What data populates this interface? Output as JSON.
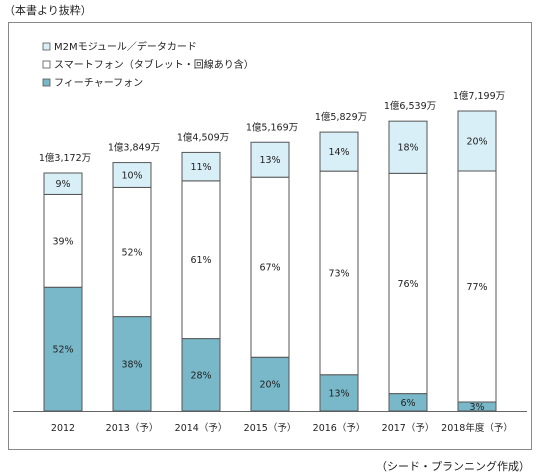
{
  "header": {
    "note": "（本書より抜粋）"
  },
  "footer": {
    "source": "（シード・プランニング作成）"
  },
  "colors": {
    "m2m": "#d9eff7",
    "smart": "#ffffff",
    "feature": "#79b8c9",
    "border": "#555555"
  },
  "chart_data": {
    "type": "bar",
    "stacked": true,
    "percent_stacked": true,
    "categories": [
      "2012",
      "2013（予）",
      "2014（予）",
      "2015（予）",
      "2016（予）",
      "2017（予）",
      "2018年度（予）"
    ],
    "totals": [
      "1億3,172万",
      "1億3,849万",
      "1億4,509万",
      "1億5,169万",
      "1億5,829万",
      "1億6,539万",
      "1億7,199万"
    ],
    "series": [
      {
        "name": "フィーチャーフォン",
        "color": "#79b8c9",
        "values": [
          52,
          38,
          28,
          20,
          13,
          6,
          3
        ]
      },
      {
        "name": "スマートフォン（タブレット・回線あり含）",
        "color": "#ffffff",
        "values": [
          39,
          52,
          61,
          67,
          73,
          76,
          77
        ]
      },
      {
        "name": "M2Mモジュール／データカード",
        "color": "#d9eff7",
        "values": [
          9,
          10,
          11,
          13,
          14,
          18,
          20
        ]
      }
    ],
    "legend_order": [
      "M2Mモジュール／データカード",
      "スマートフォン（タブレット・回線あり含）",
      "フィーチャーフォン"
    ],
    "legend_position": "top-left",
    "unit": "%"
  }
}
